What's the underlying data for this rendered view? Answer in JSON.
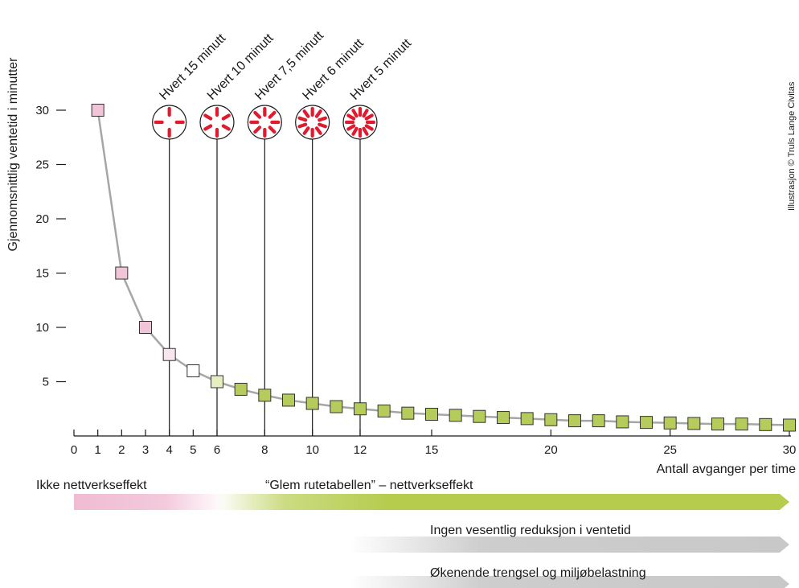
{
  "chart_data": {
    "type": "line",
    "ylabel": "Gjennomsnittlig ventetid i minutter",
    "xlabel": "Antall avganger per time",
    "xlim": [
      0,
      30
    ],
    "ylim": [
      0,
      30
    ],
    "x_ticks": [
      0,
      1,
      2,
      3,
      4,
      5,
      6,
      8,
      10,
      12,
      15,
      20,
      25,
      30
    ],
    "y_ticks": [
      5,
      10,
      15,
      20,
      25,
      30
    ],
    "grid": false,
    "series": [
      {
        "points": [
          {
            "x": 1,
            "y": 30,
            "color": "#f2c4d8"
          },
          {
            "x": 2,
            "y": 15,
            "color": "#f2c4d8"
          },
          {
            "x": 3,
            "y": 10,
            "color": "#f2c4d8"
          },
          {
            "x": 4,
            "y": 7.5,
            "color": "#f8e6ee"
          },
          {
            "x": 5,
            "y": 6,
            "color": "#ffffff"
          },
          {
            "x": 6,
            "y": 5,
            "color": "#e6efc2"
          },
          {
            "x": 7,
            "y": 4.3,
            "color": "#b5cc5c"
          },
          {
            "x": 8,
            "y": 3.75,
            "color": "#b5cc5c"
          },
          {
            "x": 9,
            "y": 3.3,
            "color": "#b5cc5c"
          },
          {
            "x": 10,
            "y": 3,
            "color": "#b5cc5c"
          },
          {
            "x": 11,
            "y": 2.7,
            "color": "#b5cc5c"
          },
          {
            "x": 12,
            "y": 2.5,
            "color": "#b5cc5c"
          },
          {
            "x": 13,
            "y": 2.3,
            "color": "#b5cc5c"
          },
          {
            "x": 14,
            "y": 2.1,
            "color": "#b5cc5c"
          },
          {
            "x": 15,
            "y": 2,
            "color": "#b5cc5c"
          },
          {
            "x": 16,
            "y": 1.9,
            "color": "#b5cc5c"
          },
          {
            "x": 17,
            "y": 1.8,
            "color": "#b5cc5c"
          },
          {
            "x": 18,
            "y": 1.7,
            "color": "#b5cc5c"
          },
          {
            "x": 19,
            "y": 1.6,
            "color": "#b5cc5c"
          },
          {
            "x": 20,
            "y": 1.5,
            "color": "#b5cc5c"
          },
          {
            "x": 21,
            "y": 1.4,
            "color": "#b5cc5c"
          },
          {
            "x": 22,
            "y": 1.4,
            "color": "#b5cc5c"
          },
          {
            "x": 23,
            "y": 1.3,
            "color": "#b5cc5c"
          },
          {
            "x": 24,
            "y": 1.25,
            "color": "#b5cc5c"
          },
          {
            "x": 25,
            "y": 1.2,
            "color": "#b5cc5c"
          },
          {
            "x": 26,
            "y": 1.15,
            "color": "#b5cc5c"
          },
          {
            "x": 27,
            "y": 1.1,
            "color": "#b5cc5c"
          },
          {
            "x": 28,
            "y": 1.1,
            "color": "#b5cc5c"
          },
          {
            "x": 29,
            "y": 1.05,
            "color": "#b5cc5c"
          },
          {
            "x": 30,
            "y": 1,
            "color": "#b5cc5c"
          }
        ]
      }
    ],
    "frequency_markers": [
      {
        "label": "Hvert 15 minutt",
        "x": 4,
        "dashes": 4
      },
      {
        "label": "Hvert 10 minutt",
        "x": 6,
        "dashes": 6
      },
      {
        "label": "Hvert 7,5 minutt",
        "x": 8,
        "dashes": 8
      },
      {
        "label": "Hvert 6 minutt",
        "x": 10,
        "dashes": 10
      },
      {
        "label": "Hvert 5 minutt",
        "x": 12,
        "dashes": 12
      }
    ],
    "bands": [
      {
        "label": "Ikke nettverkseffekt",
        "from_x": 0,
        "to_x": 6,
        "color": "#f0bcd3"
      },
      {
        "label": "“Glem rutetabellen” – nettverkseffekt",
        "from_x": 6,
        "to_x": 30,
        "color": "#b5cc4d"
      },
      {
        "label": "Ingen vesentlig reduksjon i ventetid",
        "from_x": 12,
        "to_x": 30,
        "color": "#c8c8c8"
      },
      {
        "label": "Økenende trengsel  og miljøbelastning",
        "from_x": 12,
        "to_x": 30,
        "color": "#c8c8c8"
      }
    ],
    "credit": "Illustrasjon © Truls Lange Civitas",
    "colors": {
      "curve": "#a6a6a6",
      "marker_dash": "#e01b2f",
      "axis": "#1a1a1a"
    }
  }
}
